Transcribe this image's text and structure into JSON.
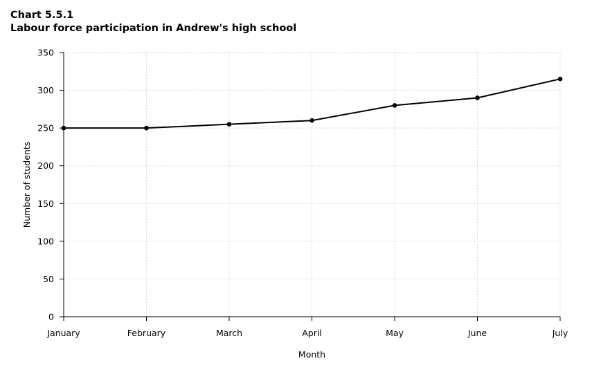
{
  "chart_data": {
    "type": "line",
    "title": "Chart 5.5.1",
    "subtitle": "Labour force participation in Andrew's high school",
    "xlabel": "Month",
    "ylabel": "Number of students",
    "categories": [
      "January",
      "February",
      "March",
      "April",
      "May",
      "June",
      "July"
    ],
    "series": [
      {
        "values": [
          250,
          250,
          255,
          260,
          280,
          290,
          315
        ]
      }
    ],
    "ylim": [
      0,
      350
    ],
    "yticks": [
      0,
      50,
      100,
      150,
      200,
      250,
      300,
      350
    ],
    "grid": true,
    "legend": "none",
    "colors": {
      "line": "#000000",
      "grid": "#d9d9d9",
      "axis": "#000000"
    }
  }
}
